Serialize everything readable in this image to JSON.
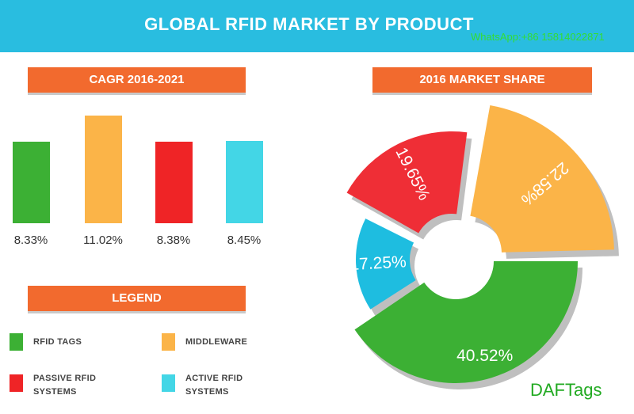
{
  "header": {
    "title": "GLOBAL RFID MARKET BY PRODUCT"
  },
  "watermark": "WhatsApp:+86 15814022871",
  "brand": "DAFTags",
  "sections": {
    "cagr_title": "CAGR 2016-2021",
    "share_title": "2016 MARKET SHARE",
    "legend_title": "LEGEND"
  },
  "legend": [
    {
      "line1": "RFID TAGS",
      "line2": "",
      "color": "#3cb034"
    },
    {
      "line1": "MIDDLEWARE",
      "line2": "",
      "color": "#fbb448"
    },
    {
      "line1": "PASSIVE RFID",
      "line2": "SYSTEMS",
      "color": "#ef2426"
    },
    {
      "line1": "ACTIVE RFID",
      "line2": "SYSTEMS",
      "color": "#43d6e6"
    }
  ],
  "chart_data": [
    {
      "type": "bar",
      "title": "CAGR 2016-2021",
      "categories": [
        "RFID TAGS",
        "MIDDLEWARE",
        "PASSIVE RFID SYSTEMS",
        "ACTIVE RFID SYSTEMS"
      ],
      "values": [
        8.33,
        11.02,
        8.38,
        8.45
      ],
      "value_labels": [
        "8.33%",
        "11.02%",
        "8.38%",
        "8.45%"
      ],
      "colors": [
        "#3cb034",
        "#fbb448",
        "#ef2426",
        "#43d6e6"
      ],
      "axes": "none"
    },
    {
      "type": "pie",
      "title": "2016 MARKET SHARE",
      "style": "donut-exploded",
      "slices": [
        {
          "name": "RFID TAGS",
          "value": 40.52,
          "label": "40.52%",
          "color": "#3cb034"
        },
        {
          "name": "ACTIVE RFID SYSTEMS",
          "value": 17.25,
          "label": "17.25%",
          "color": "#1ebde0"
        },
        {
          "name": "PASSIVE RFID SYSTEMS",
          "value": 19.65,
          "label": "19.65%",
          "color": "#ef2e36"
        },
        {
          "name": "MIDDLEWARE",
          "value": 22.58,
          "label": "22.58%",
          "color": "#fbb448"
        }
      ]
    }
  ]
}
